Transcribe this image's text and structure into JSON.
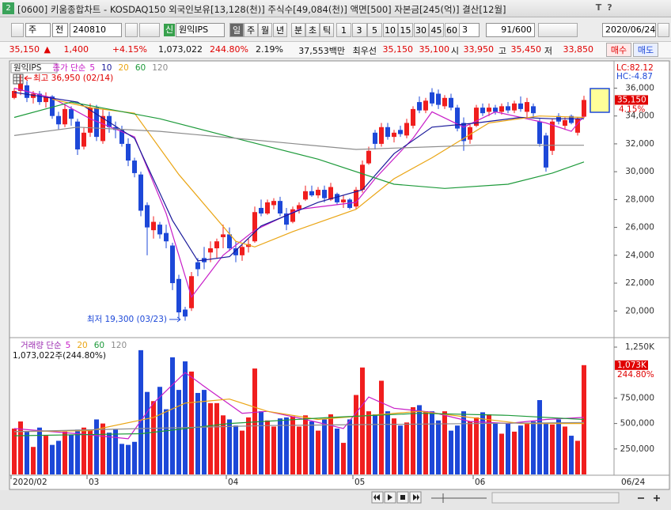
{
  "window": {
    "number": "2",
    "title": "[0600] 키움종합차트 - KOSDAQ150 외국인보유[13,128(천)] 주식수[49,084(천)] 액면[500] 자본금[245(억)] 결산[12월]",
    "title_buttons": [
      "T",
      "?"
    ],
    "toolbar": {
      "market": "주",
      "scope": "전",
      "code": "240810",
      "new_badge": "신",
      "name": "원익IPS",
      "periods": [
        "일",
        "주",
        "월",
        "년",
        "분",
        "초",
        "틱"
      ],
      "intervals": [
        "1",
        "3",
        "5",
        "10",
        "15",
        "30",
        "45",
        "60"
      ],
      "interval_count": "3",
      "count": "91/600",
      "date": "2020/06/24"
    },
    "quote": {
      "price": "35,150",
      "arrow": "▲",
      "change": "1,400",
      "change_rate": "+4.15%",
      "volume": "1,073,022",
      "volume_ratio": "244.80%",
      "turnover": "2.19%",
      "amount": "37,553백만",
      "best_label": "최우선",
      "ask": "35,150",
      "bid": "35,100",
      "open_label": "시",
      "open": "33,950",
      "high_label": "고",
      "high": "35,450",
      "low_label": "저",
      "low": "33,850",
      "buy": "매수",
      "sell": "매도"
    }
  },
  "chart_data": [
    {
      "type": "candlestick",
      "name": "원익IPS",
      "legend_prefix": "종가 단순",
      "categories": [
        "2020/02",
        null,
        null,
        null,
        null,
        null,
        null,
        null,
        null,
        null,
        null,
        null,
        "03",
        null,
        null,
        null,
        null,
        null,
        null,
        null,
        null,
        null,
        null,
        null,
        null,
        null,
        null,
        null,
        null,
        null,
        null,
        null,
        null,
        null,
        "04",
        null,
        null,
        null,
        null,
        null,
        null,
        null,
        null,
        null,
        null,
        null,
        null,
        null,
        null,
        null,
        null,
        null,
        null,
        null,
        "05",
        null,
        null,
        null,
        null,
        null,
        null,
        null,
        null,
        null,
        null,
        null,
        null,
        null,
        null,
        null,
        null,
        null,
        null,
        "06",
        null,
        null,
        null,
        null,
        null,
        null,
        null,
        null,
        null,
        null,
        null,
        null,
        null,
        null,
        null,
        null,
        null
      ],
      "last_date": "06/24",
      "open": [
        35300,
        35800,
        36200,
        35300,
        35600,
        35000,
        35400,
        34000,
        33400,
        34500,
        33600,
        31800,
        32800,
        34600,
        32200,
        34000,
        33200,
        33000,
        32000,
        30800,
        29800,
        27600,
        25800,
        26200,
        25600,
        24700,
        22300,
        20100,
        20200,
        23500,
        23800,
        24200,
        24500,
        25300,
        25500,
        24500,
        24000,
        24600,
        25000,
        27400,
        27000,
        27600,
        27900,
        27000,
        26400,
        27300,
        28000,
        28600,
        28300,
        28700,
        28000,
        28400,
        27800,
        28000,
        27500,
        28700,
        30600,
        32800,
        32000,
        33200,
        32500,
        33000,
        32600,
        33300,
        35000,
        34400,
        35700,
        35600,
        34700,
        35300,
        34600,
        33500,
        32300,
        33300,
        34600,
        34300,
        34600,
        34300,
        34700,
        34400,
        34900,
        34300,
        34700,
        33600,
        32600,
        31500,
        34000,
        33300,
        34000,
        32800,
        33950
      ],
      "high": [
        36000,
        36950,
        36500,
        35800,
        35800,
        35700,
        35500,
        34300,
        34800,
        34700,
        33800,
        33200,
        34900,
        34800,
        34500,
        34300,
        33600,
        33300,
        32400,
        31000,
        30000,
        27800,
        26800,
        26400,
        26200,
        24900,
        22600,
        20300,
        22800,
        23800,
        24600,
        25000,
        25200,
        26200,
        26000,
        25000,
        24800,
        25200,
        27500,
        28000,
        28000,
        28100,
        28200,
        27400,
        27500,
        27800,
        29000,
        29000,
        28900,
        29000,
        29200,
        28500,
        28300,
        28100,
        28900,
        30800,
        31800,
        33000,
        33500,
        33500,
        33000,
        33300,
        33800,
        34700,
        35400,
        35300,
        36000,
        35900,
        35500,
        35600,
        34800,
        33900,
        33400,
        34800,
        34900,
        34900,
        34800,
        34900,
        35000,
        35100,
        35400,
        35300,
        34900,
        33800,
        32800,
        33800,
        34200,
        33900,
        34100,
        33900,
        35450
      ],
      "low": [
        35200,
        35500,
        35000,
        34900,
        34800,
        34600,
        33800,
        33000,
        33200,
        33300,
        31200,
        31600,
        32500,
        32200,
        32000,
        32800,
        32400,
        31800,
        30400,
        29600,
        26800,
        24000,
        25200,
        25200,
        24500,
        21500,
        19500,
        19300,
        20000,
        22500,
        23000,
        23500,
        23800,
        24500,
        24300,
        23500,
        23600,
        24200,
        24900,
        26800,
        26900,
        27300,
        26800,
        25800,
        26300,
        27000,
        27900,
        28200,
        28100,
        27800,
        27900,
        27600,
        27400,
        27300,
        27300,
        28500,
        30500,
        31600,
        31800,
        32300,
        32100,
        32500,
        32400,
        33100,
        34200,
        34200,
        34700,
        34500,
        34500,
        34400,
        32900,
        31500,
        32000,
        33200,
        34000,
        34000,
        34100,
        34100,
        34200,
        34200,
        34300,
        33900,
        33900,
        31800,
        30000,
        31200,
        33400,
        33000,
        33400,
        32600,
        33850
      ],
      "close": [
        35800,
        36300,
        35300,
        35600,
        35000,
        35400,
        34000,
        33400,
        34500,
        33800,
        31600,
        32800,
        34600,
        32500,
        34000,
        33200,
        33000,
        32000,
        30800,
        29900,
        27200,
        26000,
        26400,
        25500,
        25000,
        22000,
        19900,
        19600,
        22500,
        23000,
        23500,
        24500,
        25000,
        25500,
        24500,
        24000,
        24600,
        24800,
        27100,
        27000,
        27800,
        27900,
        27000,
        26200,
        27300,
        27600,
        28600,
        28300,
        28700,
        28100,
        28900,
        27800,
        28000,
        27400,
        28700,
        30500,
        31500,
        32000,
        33200,
        32500,
        32800,
        32700,
        33500,
        34500,
        34400,
        35100,
        34900,
        34800,
        35300,
        34600,
        33100,
        32200,
        33200,
        34600,
        34200,
        34600,
        34300,
        34700,
        34400,
        34900,
        34500,
        35000,
        34200,
        32000,
        30300,
        33600,
        33600,
        33700,
        33500,
        33800,
        35150
      ],
      "up_color": "#f01e1e",
      "down_color": "#1d48d8",
      "series": [
        {
          "name": "5",
          "color": "#c81ec8",
          "x": [
            0,
            6,
            12,
            19,
            24,
            28,
            33,
            38,
            45,
            54,
            57,
            63,
            66,
            71,
            76,
            84,
            88,
            90
          ],
          "values": [
            36000,
            35300,
            33800,
            32500,
            27000,
            21000,
            24000,
            25800,
            27300,
            27800,
            29500,
            32400,
            34300,
            33200,
            34300,
            33500,
            32900,
            34000
          ]
        },
        {
          "name": "10",
          "color": "#1a1a9a",
          "x": [
            0,
            10,
            19,
            25,
            29,
            34,
            39,
            48,
            55,
            60,
            66,
            73,
            80,
            85,
            90
          ],
          "values": [
            35700,
            35000,
            32400,
            26500,
            23600,
            23900,
            26100,
            27800,
            28700,
            31300,
            33200,
            33500,
            33900,
            33800,
            33800
          ]
        },
        {
          "name": "20",
          "color": "#eaa514",
          "x": [
            6,
            12,
            19,
            26,
            35,
            38,
            44,
            54,
            60,
            66,
            75,
            83,
            90
          ],
          "values": [
            35200,
            34600,
            34200,
            29800,
            25000,
            24600,
            25700,
            27300,
            29500,
            31000,
            33500,
            34000,
            33900
          ]
        },
        {
          "name": "60",
          "color": "#1d9a3a",
          "x": [
            0,
            9,
            23,
            35,
            48,
            60,
            68,
            78,
            85,
            90
          ],
          "values": [
            33900,
            35000,
            33800,
            32400,
            30900,
            29100,
            28800,
            29100,
            29900,
            30700
          ]
        },
        {
          "name": "120",
          "color": "#8c8c8c",
          "x": [
            0,
            10,
            23,
            35,
            54,
            73,
            90
          ],
          "values": [
            32600,
            33200,
            32900,
            32400,
            31600,
            31900,
            31900
          ]
        }
      ],
      "ylim": [
        18200,
        37900
      ],
      "yticks": [
        {
          "value": 20000,
          "label": "20,000"
        },
        {
          "value": 22000,
          "label": "22,000"
        },
        {
          "value": 24000,
          "label": "24,000"
        },
        {
          "value": 26000,
          "label": "26,000"
        },
        {
          "value": 28000,
          "label": "28,000"
        },
        {
          "value": 30000,
          "label": "30,000"
        },
        {
          "value": 32000,
          "label": "32,000"
        },
        {
          "value": 34000,
          "label": "34,000"
        },
        {
          "value": 36000,
          "label": "36,000"
        }
      ],
      "grid": false,
      "high_note": "최고 36,950 (02/14)",
      "low_note": "최저 19,300 (03/23)",
      "lc": "LC:82.12",
      "hc": "HC:-4.87",
      "last_label": "35,150",
      "change_label": "4.15%"
    },
    {
      "type": "bar",
      "legend_prefix": "거래량 단순",
      "summary": "1,073,022주(244.80%)",
      "values": [
        450000,
        520000,
        420000,
        270000,
        460000,
        380000,
        290000,
        330000,
        420000,
        390000,
        440000,
        460000,
        440000,
        540000,
        500000,
        410000,
        440000,
        300000,
        290000,
        320000,
        1220000,
        810000,
        720000,
        860000,
        640000,
        1150000,
        830000,
        1110000,
        1010000,
        800000,
        830000,
        700000,
        700000,
        580000,
        540000,
        480000,
        430000,
        560000,
        1040000,
        620000,
        530000,
        470000,
        550000,
        560000,
        570000,
        470000,
        580000,
        520000,
        430000,
        540000,
        590000,
        450000,
        310000,
        540000,
        780000,
        1050000,
        620000,
        590000,
        920000,
        620000,
        550000,
        480000,
        510000,
        660000,
        680000,
        620000,
        620000,
        530000,
        620000,
        430000,
        480000,
        620000,
        520000,
        560000,
        610000,
        590000,
        500000,
        400000,
        500000,
        420000,
        480000,
        500000,
        520000,
        730000,
        500000,
        490000,
        540000,
        470000,
        380000,
        330000,
        1073022
      ],
      "series": [
        {
          "name": "5",
          "color": "#c81ec8",
          "x": [
            0,
            10,
            18,
            22,
            27,
            31,
            36,
            40,
            46,
            52,
            56,
            60,
            66,
            72,
            78,
            84,
            90
          ],
          "values": [
            450000,
            400000,
            350000,
            700000,
            1000000,
            820000,
            600000,
            620000,
            540000,
            450000,
            760000,
            650000,
            610000,
            520000,
            500000,
            540000,
            560000
          ]
        },
        {
          "name": "20",
          "color": "#eaa514",
          "x": [
            0,
            12,
            22,
            27,
            34,
            40,
            48,
            56,
            64,
            72,
            80,
            90
          ],
          "values": [
            420000,
            430000,
            560000,
            700000,
            740000,
            620000,
            540000,
            580000,
            620000,
            560000,
            500000,
            500000
          ]
        },
        {
          "name": "60",
          "color": "#1d9a3a",
          "x": [
            0,
            20,
            34,
            50,
            64,
            78,
            90
          ],
          "values": [
            380000,
            400000,
            500000,
            560000,
            600000,
            580000,
            540000
          ]
        },
        {
          "name": "120",
          "color": "#8c8c8c",
          "x": [
            0,
            40,
            90
          ],
          "values": [
            420000,
            480000,
            510000
          ]
        }
      ],
      "ylim": [
        0,
        1320000
      ],
      "yticks": [
        {
          "value": 250000,
          "label": "250,000"
        },
        {
          "value": 500000,
          "label": "500,000"
        },
        {
          "value": 750000,
          "label": "750,000"
        },
        {
          "value": 1250000,
          "label": "1,250K"
        }
      ],
      "grid": false,
      "last_label": "1,073K",
      "ratio_label": "244.80%"
    }
  ]
}
